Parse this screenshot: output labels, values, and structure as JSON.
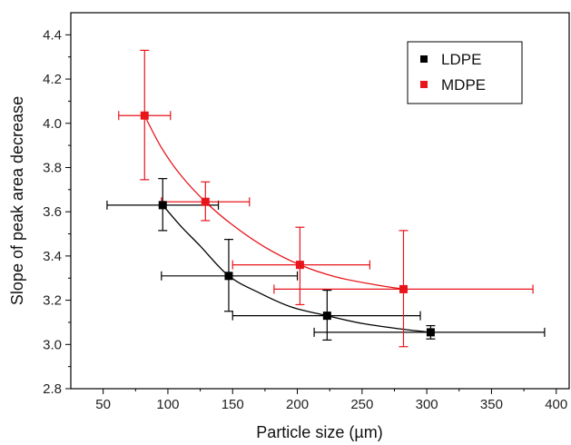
{
  "chart_data": {
    "type": "scatter",
    "title": "",
    "xlabel": "Particle size (µm)",
    "ylabel": "Slope of peak area decrease",
    "xlim": [
      25,
      410
    ],
    "ylim": [
      2.8,
      4.5
    ],
    "xticks": [
      50,
      100,
      150,
      200,
      250,
      300,
      350,
      400
    ],
    "xtick_labels": [
      "50",
      "100",
      "150",
      "200",
      "250",
      "300",
      "350",
      "400"
    ],
    "yticks": [
      2.8,
      3.0,
      3.2,
      3.4,
      3.6,
      3.8,
      4.0,
      4.2,
      4.4
    ],
    "ytick_labels": [
      "2.8",
      "3.0",
      "3.2",
      "3.4",
      "3.6",
      "3.8",
      "4.0",
      "4.2",
      "4.4"
    ],
    "grid": false,
    "legend_position": "top-right",
    "series": [
      {
        "name": "LDPE",
        "color": "#000000",
        "marker": "square",
        "points": [
          {
            "x": 96,
            "y": 3.63,
            "xerr": [
              53,
              139
            ],
            "yerr": [
              3.515,
              3.75
            ]
          },
          {
            "x": 147,
            "y": 3.31,
            "xerr": [
              95,
              200
            ],
            "yerr": [
              3.15,
              3.475
            ]
          },
          {
            "x": 223,
            "y": 3.13,
            "xerr": [
              150,
              295
            ],
            "yerr": [
              3.02,
              3.245
            ]
          },
          {
            "x": 303,
            "y": 3.055,
            "xerr": [
              213,
              391
            ],
            "yerr": [
              3.025,
              3.085
            ]
          }
        ],
        "fit_curve": [
          [
            96,
            3.63
          ],
          [
            110,
            3.535
          ],
          [
            125,
            3.445
          ],
          [
            147,
            3.31
          ],
          [
            170,
            3.235
          ],
          [
            195,
            3.17
          ],
          [
            223,
            3.13
          ],
          [
            250,
            3.095
          ],
          [
            280,
            3.07
          ],
          [
            303,
            3.055
          ]
        ]
      },
      {
        "name": "MDPE",
        "color": "#e8151b",
        "marker": "square",
        "points": [
          {
            "x": 82,
            "y": 4.035,
            "xerr": [
              62,
              102
            ],
            "yerr": [
              3.745,
              4.33
            ]
          },
          {
            "x": 129,
            "y": 3.645,
            "xerr": [
              95,
              163
            ],
            "yerr": [
              3.56,
              3.735
            ]
          },
          {
            "x": 202,
            "y": 3.36,
            "xerr": [
              150,
              256
            ],
            "yerr": [
              3.18,
              3.53
            ]
          },
          {
            "x": 282,
            "y": 3.25,
            "xerr": [
              182,
              382
            ],
            "yerr": [
              2.99,
              3.515
            ]
          }
        ],
        "fit_curve": [
          [
            82,
            4.035
          ],
          [
            95,
            3.89
          ],
          [
            110,
            3.765
          ],
          [
            129,
            3.645
          ],
          [
            150,
            3.54
          ],
          [
            175,
            3.44
          ],
          [
            202,
            3.36
          ],
          [
            230,
            3.305
          ],
          [
            260,
            3.27
          ],
          [
            282,
            3.25
          ]
        ]
      }
    ]
  }
}
